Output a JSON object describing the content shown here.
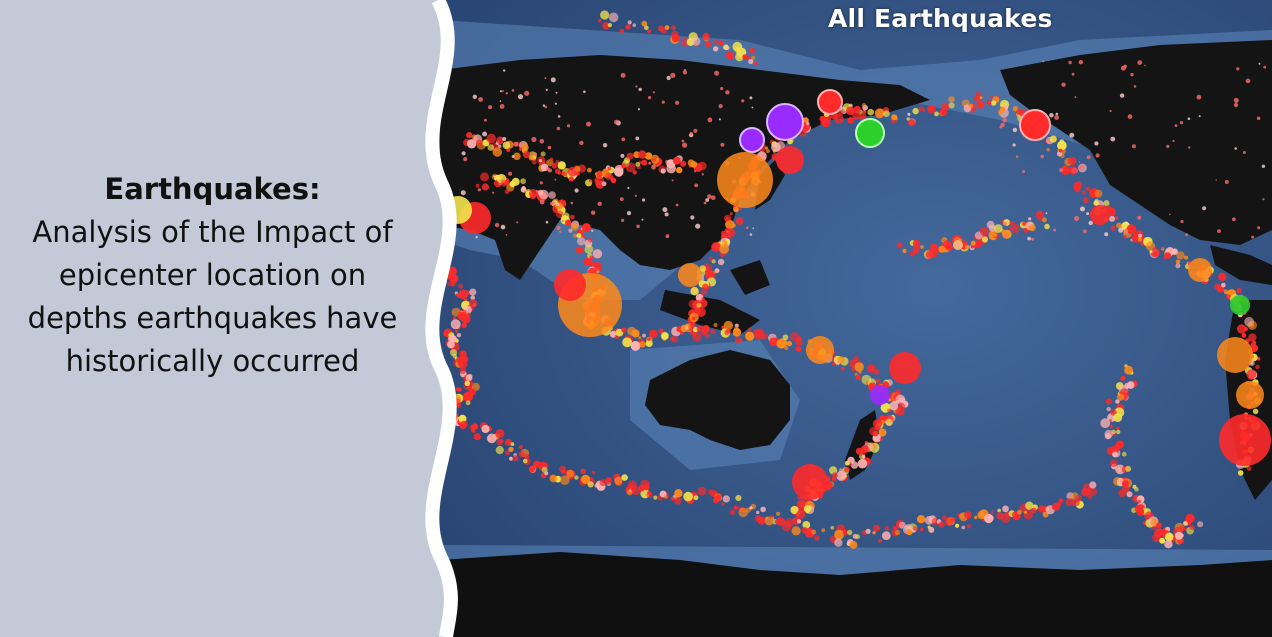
{
  "caption": {
    "title": "Earthquakes:",
    "body": "Analysis of the Impact of epicenter location on depths earthquakes have historically occurred"
  },
  "map": {
    "title": "All Earthquakes",
    "colors": {
      "ocean": "#3a5d8f",
      "ocean_deep": "#2c4a78",
      "land": "#141414",
      "shelf": "#5a83b6",
      "quake_primary": "#ff2a2a",
      "quake_orange": "#ff8a1a",
      "quake_yellow": "#f2e34a",
      "quake_green": "#2bd02b",
      "quake_purple": "#9a2bff",
      "panel": "#c3c9d7"
    }
  }
}
